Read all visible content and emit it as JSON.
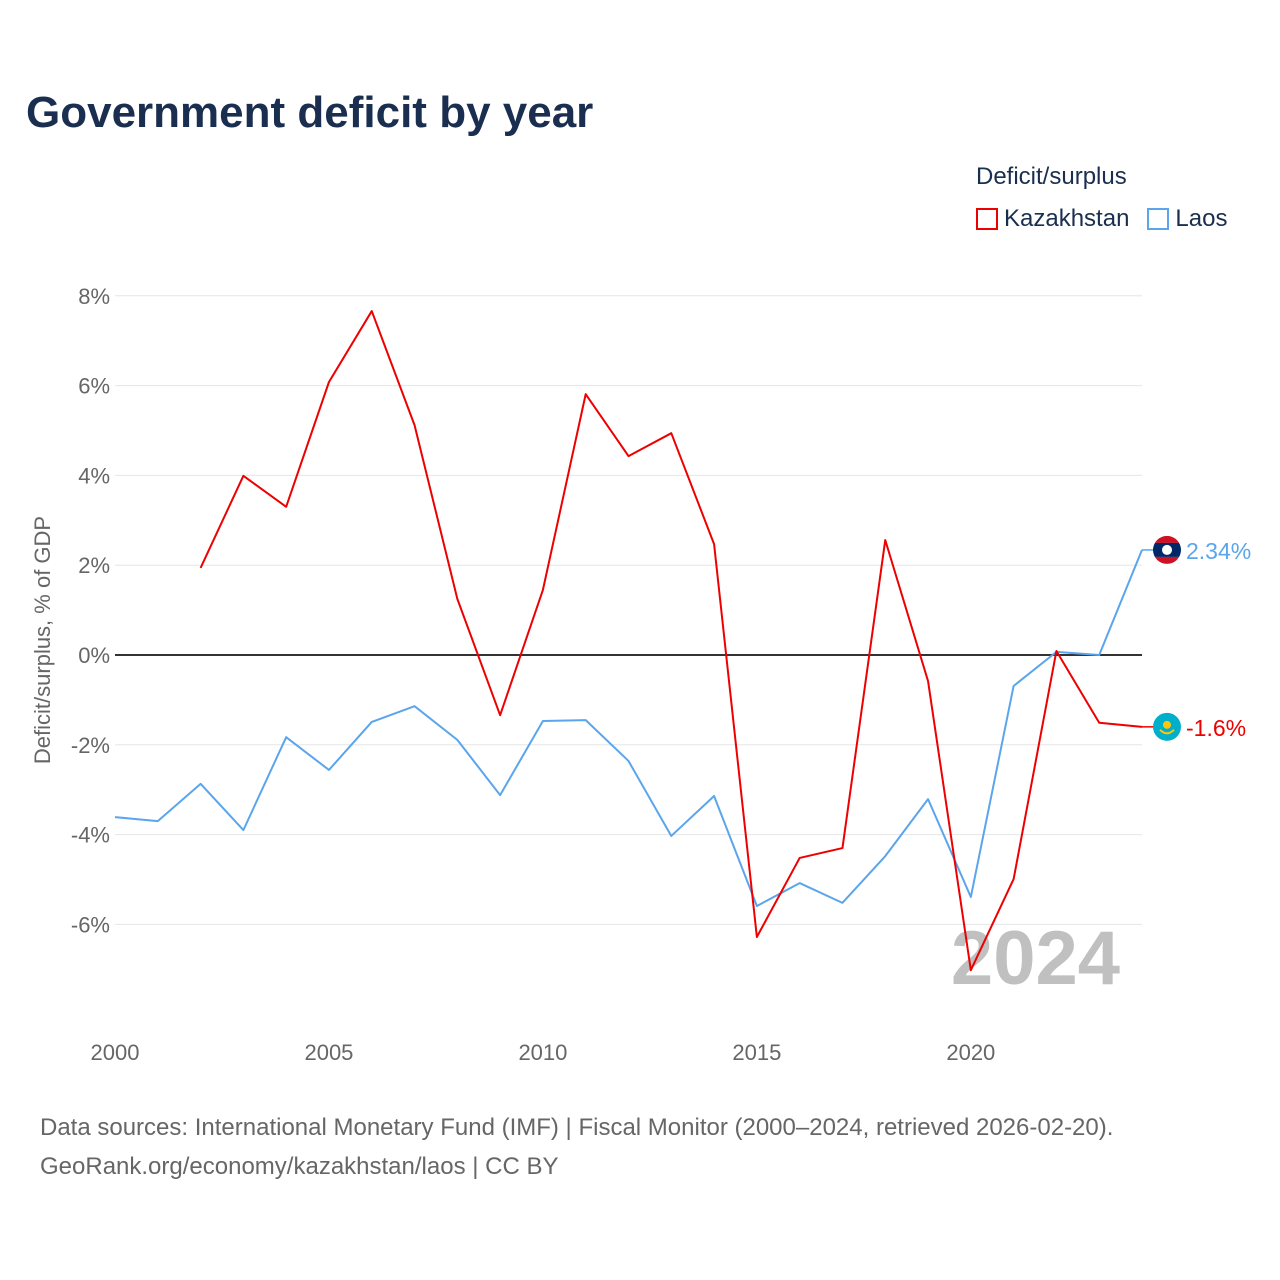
{
  "chart_data": {
    "type": "line",
    "title": "Government deficit by year",
    "legend_title": "Deficit/surplus",
    "legend_placement": "top-right",
    "ylabel": "Deficit/surplus, % of GDP",
    "xlabel": "",
    "ylim": [
      -8,
      8
    ],
    "xlim": [
      2000,
      2024
    ],
    "yticks": [
      -6,
      -4,
      -2,
      0,
      2,
      4,
      6,
      8
    ],
    "ytick_labels": [
      "-6%",
      "-4%",
      "-2%",
      "0%",
      "2%",
      "4%",
      "6%",
      "8%"
    ],
    "xticks": [
      2000,
      2005,
      2010,
      2015,
      2020
    ],
    "xtick_labels": [
      "2000",
      "2005",
      "2010",
      "2015",
      "2020"
    ],
    "grid": true,
    "year_watermark": "2024",
    "series": [
      {
        "name": "Kazakhstan",
        "color": "#ee0000",
        "end_label": "-1.6%",
        "x": [
          2002,
          2003,
          2004,
          2005,
          2006,
          2007,
          2008,
          2009,
          2010,
          2011,
          2012,
          2013,
          2014,
          2015,
          2016,
          2017,
          2018,
          2019,
          2020,
          2021,
          2022,
          2023,
          2024
        ],
        "values": [
          1.94,
          3.99,
          3.3,
          6.08,
          7.66,
          5.12,
          1.25,
          -1.34,
          1.45,
          5.81,
          4.43,
          4.94,
          2.47,
          -6.28,
          -4.52,
          -4.3,
          2.56,
          -0.58,
          -7.02,
          -4.99,
          0.09,
          -1.51,
          -1.6
        ]
      },
      {
        "name": "Laos",
        "color": "#5aa5ec",
        "end_label": "2.34%",
        "x": [
          2000,
          2001,
          2002,
          2003,
          2004,
          2005,
          2006,
          2007,
          2008,
          2009,
          2010,
          2011,
          2012,
          2013,
          2014,
          2015,
          2016,
          2017,
          2018,
          2019,
          2020,
          2021,
          2022,
          2023,
          2024
        ],
        "values": [
          -3.61,
          -3.7,
          -2.87,
          -3.9,
          -1.83,
          -2.56,
          -1.49,
          -1.14,
          -1.89,
          -3.12,
          -1.47,
          -1.45,
          -2.36,
          -4.03,
          -3.14,
          -5.59,
          -5.08,
          -5.52,
          -4.48,
          -3.21,
          -5.39,
          -0.69,
          0.07,
          0.0,
          2.34
        ]
      }
    ]
  },
  "footer": {
    "source_line": "Data sources: International Monetary Fund (IMF) | Fiscal Monitor (2000–2024, retrieved 2026-02-20).",
    "url_line": "GeoRank.org/economy/kazakhstan/laos | CC BY"
  }
}
